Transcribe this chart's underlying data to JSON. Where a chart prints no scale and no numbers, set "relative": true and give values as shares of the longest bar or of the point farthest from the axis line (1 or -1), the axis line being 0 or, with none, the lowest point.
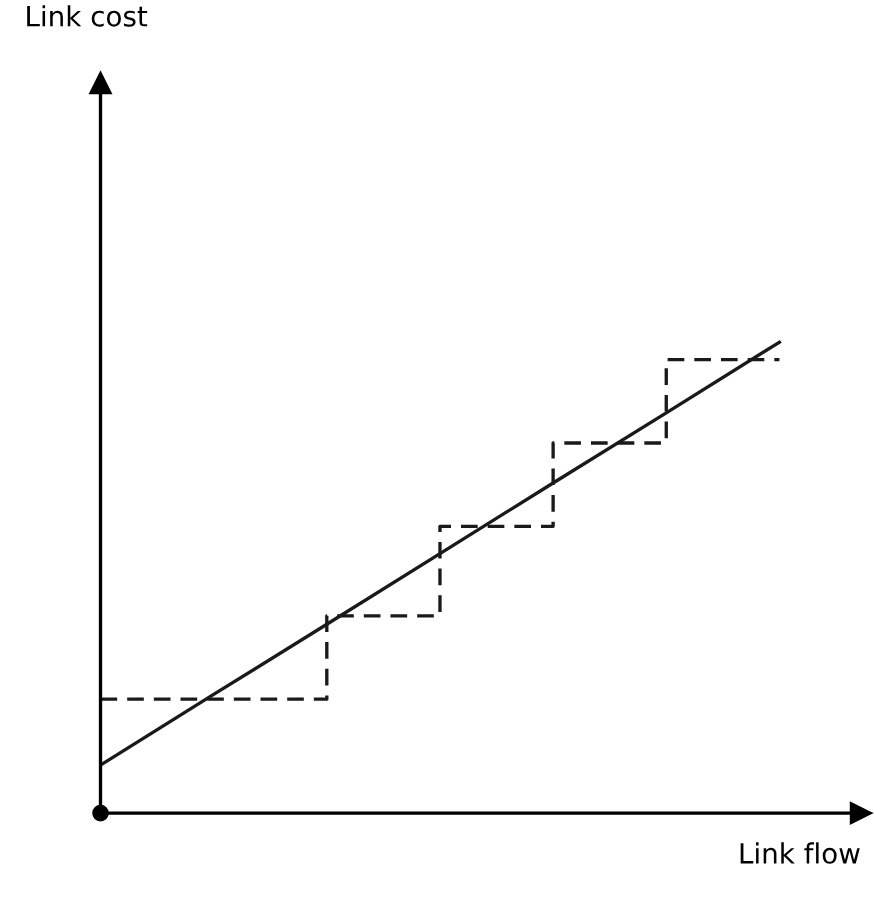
{
  "chart_data": {
    "type": "line",
    "relative": true,
    "xlabel": "Link flow",
    "annotations": [
      "Link cost"
    ],
    "categories": [
      null,
      null,
      null,
      null,
      null,
      null,
      null
    ],
    "series": [
      {
        "type": "line",
        "color": "#1a1a1a",
        "line_style": "solid",
        "values": [
          0.102,
          0.252,
          0.401,
          0.551,
          0.701,
          0.85,
          1
        ]
      },
      {
        "type": "step",
        "color": "#1a1a1a",
        "line_style": "dashed",
        "values": [
          0.242,
          0.242,
          0.419,
          0.609,
          0.786,
          0.963,
          0.963
        ]
      }
    ]
  }
}
